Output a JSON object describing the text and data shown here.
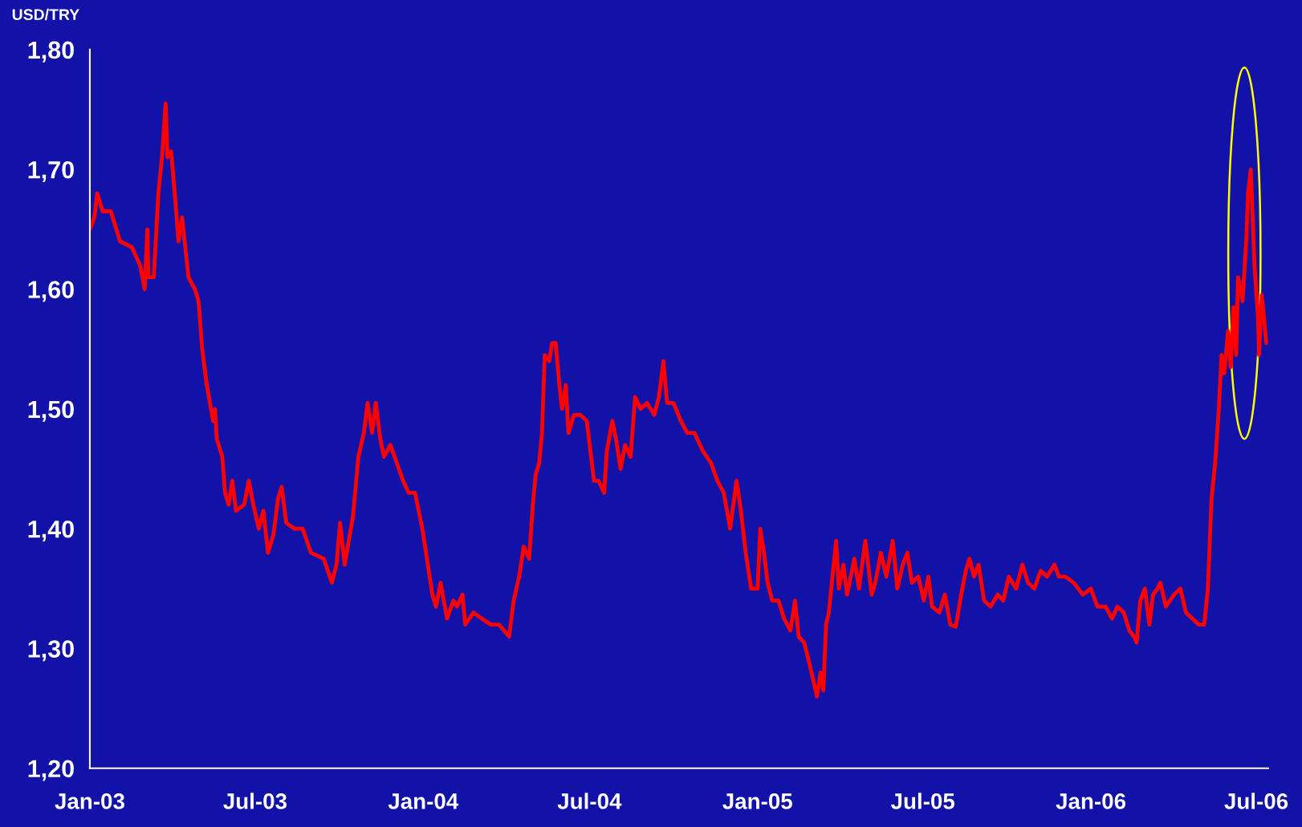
{
  "chart_data": {
    "type": "line",
    "ylabel": "USD/TRY",
    "xlim": [
      "2003-01-01",
      "2006-07-14"
    ],
    "ylim": [
      1.2,
      1.8
    ],
    "xticks": [
      {
        "value": "2003-01-01",
        "label": "Jan-03"
      },
      {
        "value": "2003-07-01",
        "label": "Jul-03"
      },
      {
        "value": "2004-01-01",
        "label": "Jan-04"
      },
      {
        "value": "2004-07-01",
        "label": "Jul-04"
      },
      {
        "value": "2005-01-01",
        "label": "Jan-05"
      },
      {
        "value": "2005-07-01",
        "label": "Jul-05"
      },
      {
        "value": "2006-01-01",
        "label": "Jan-06"
      },
      {
        "value": "2006-07-01",
        "label": "Jul-06"
      }
    ],
    "yticks": [
      {
        "value": 1.2,
        "label": "1,20"
      },
      {
        "value": 1.3,
        "label": "1,30"
      },
      {
        "value": 1.4,
        "label": "1,40"
      },
      {
        "value": 1.5,
        "label": "1,50"
      },
      {
        "value": 1.6,
        "label": "1,60"
      },
      {
        "value": 1.7,
        "label": "1,70"
      },
      {
        "value": 1.8,
        "label": "1,80"
      }
    ],
    "grid": false,
    "legend": false,
    "marker": "none",
    "line_style": "solid",
    "series": [
      {
        "color": "#ff0000",
        "x": [
          "2003-01-01",
          "2003-01-06",
          "2003-01-09",
          "2003-01-15",
          "2003-01-24",
          "2003-02-03",
          "2003-02-16",
          "2003-02-25",
          "2003-03-02",
          "2003-03-05",
          "2003-03-06",
          "2003-03-12",
          "2003-03-17",
          "2003-03-21",
          "2003-03-25",
          "2003-03-27",
          "2003-03-31",
          "2003-04-05",
          "2003-04-08",
          "2003-04-12",
          "2003-04-19",
          "2003-04-26",
          "2003-04-30",
          "2003-05-04",
          "2003-05-09",
          "2003-05-16",
          "2003-05-18",
          "2003-05-20",
          "2003-05-26",
          "2003-05-29",
          "2003-06-02",
          "2003-06-06",
          "2003-06-10",
          "2003-06-19",
          "2003-06-24",
          "2003-06-29",
          "2003-07-05",
          "2003-07-10",
          "2003-07-15",
          "2003-07-21",
          "2003-07-26",
          "2003-07-30",
          "2003-08-04",
          "2003-08-13",
          "2003-08-22",
          "2003-08-31",
          "2003-09-14",
          "2003-09-23",
          "2003-09-28",
          "2003-10-02",
          "2003-10-07",
          "2003-10-16",
          "2003-10-22",
          "2003-10-28",
          "2003-11-01",
          "2003-11-06",
          "2003-11-10",
          "2003-11-15",
          "2003-11-19",
          "2003-11-26",
          "2003-12-03",
          "2003-12-10",
          "2003-12-16",
          "2003-12-23",
          "2003-12-31",
          "2004-01-06",
          "2004-01-11",
          "2004-01-15",
          "2004-01-20",
          "2004-01-27",
          "2004-02-03",
          "2004-02-07",
          "2004-02-13",
          "2004-02-16",
          "2004-02-25",
          "2004-03-05",
          "2004-03-15",
          "2004-03-24",
          "2004-04-04",
          "2004-04-09",
          "2004-04-15",
          "2004-04-20",
          "2004-04-26",
          "2004-04-30",
          "2004-05-03",
          "2004-05-07",
          "2004-05-10",
          "2004-05-13",
          "2004-05-18",
          "2004-05-21",
          "2004-05-25",
          "2004-05-29",
          "2004-06-01",
          "2004-06-05",
          "2004-06-08",
          "2004-06-14",
          "2004-06-21",
          "2004-06-28",
          "2004-07-02",
          "2004-07-06",
          "2004-07-11",
          "2004-07-17",
          "2004-07-20",
          "2004-07-26",
          "2004-07-30",
          "2004-08-04",
          "2004-08-09",
          "2004-08-15",
          "2004-08-20",
          "2004-08-26",
          "2004-09-02",
          "2004-09-10",
          "2004-09-15",
          "2004-09-20",
          "2004-09-24",
          "2004-10-01",
          "2004-10-09",
          "2004-10-16",
          "2004-10-24",
          "2004-11-02",
          "2004-11-11",
          "2004-11-18",
          "2004-11-25",
          "2004-12-02",
          "2004-12-09",
          "2004-12-13",
          "2004-12-19",
          "2004-12-25",
          "2005-01-01",
          "2005-01-04",
          "2005-01-08",
          "2005-01-12",
          "2005-01-17",
          "2005-01-24",
          "2005-01-30",
          "2005-02-06",
          "2005-02-11",
          "2005-02-15",
          "2005-02-21",
          "2005-02-26",
          "2005-03-04",
          "2005-03-07",
          "2005-03-11",
          "2005-03-14",
          "2005-03-17",
          "2005-03-20",
          "2005-03-24",
          "2005-03-28",
          "2005-03-31",
          "2005-04-05",
          "2005-04-09",
          "2005-04-17",
          "2005-04-22",
          "2005-04-29",
          "2005-05-06",
          "2005-05-10",
          "2005-05-16",
          "2005-05-22",
          "2005-05-29",
          "2005-06-03",
          "2005-06-09",
          "2005-06-14",
          "2005-06-19",
          "2005-06-26",
          "2005-07-02",
          "2005-07-07",
          "2005-07-11",
          "2005-07-19",
          "2005-07-25",
          "2005-07-31",
          "2005-08-06",
          "2005-08-12",
          "2005-08-17",
          "2005-08-21",
          "2005-08-26",
          "2005-08-31",
          "2005-09-06",
          "2005-09-13",
          "2005-09-21",
          "2005-09-27",
          "2005-10-03",
          "2005-10-11",
          "2005-10-18",
          "2005-10-24",
          "2005-10-31",
          "2005-11-07",
          "2005-11-14",
          "2005-11-22",
          "2005-11-27",
          "2005-12-04",
          "2005-12-13",
          "2005-12-23",
          "2006-01-01",
          "2006-01-08",
          "2006-01-17",
          "2006-01-24",
          "2006-01-30",
          "2006-02-06",
          "2006-02-12",
          "2006-02-17",
          "2006-02-20",
          "2006-02-24",
          "2006-03-01",
          "2006-03-06",
          "2006-03-10",
          "2006-03-15",
          "2006-03-18",
          "2006-03-24",
          "2006-04-02",
          "2006-04-09",
          "2006-04-15",
          "2006-04-22",
          "2006-04-29",
          "2006-05-05",
          "2006-05-09",
          "2006-05-13",
          "2006-05-17",
          "2006-05-21",
          "2006-05-24",
          "2006-05-27",
          "2006-05-31",
          "2006-06-03",
          "2006-06-06",
          "2006-06-09",
          "2006-06-11",
          "2006-06-16",
          "2006-06-20",
          "2006-06-22",
          "2006-06-25",
          "2006-06-29",
          "2006-07-03",
          "2006-07-04",
          "2006-07-07",
          "2006-07-12"
        ],
        "values": [
          1.65,
          1.66,
          1.68,
          1.665,
          1.665,
          1.64,
          1.635,
          1.62,
          1.6,
          1.65,
          1.61,
          1.61,
          1.68,
          1.71,
          1.755,
          1.71,
          1.715,
          1.67,
          1.64,
          1.66,
          1.61,
          1.6,
          1.59,
          1.55,
          1.52,
          1.49,
          1.5,
          1.475,
          1.46,
          1.43,
          1.42,
          1.44,
          1.415,
          1.42,
          1.44,
          1.42,
          1.4,
          1.415,
          1.38,
          1.395,
          1.425,
          1.435,
          1.405,
          1.4,
          1.4,
          1.38,
          1.375,
          1.355,
          1.37,
          1.405,
          1.37,
          1.41,
          1.46,
          1.48,
          1.505,
          1.48,
          1.505,
          1.475,
          1.46,
          1.47,
          1.455,
          1.44,
          1.43,
          1.43,
          1.4,
          1.37,
          1.345,
          1.335,
          1.355,
          1.325,
          1.34,
          1.335,
          1.345,
          1.32,
          1.33,
          1.325,
          1.32,
          1.32,
          1.31,
          1.34,
          1.36,
          1.385,
          1.375,
          1.42,
          1.445,
          1.455,
          1.48,
          1.545,
          1.54,
          1.555,
          1.555,
          1.52,
          1.5,
          1.52,
          1.48,
          1.495,
          1.495,
          1.49,
          1.465,
          1.44,
          1.44,
          1.43,
          1.465,
          1.49,
          1.475,
          1.45,
          1.47,
          1.46,
          1.51,
          1.5,
          1.505,
          1.495,
          1.51,
          1.54,
          1.505,
          1.505,
          1.49,
          1.48,
          1.48,
          1.465,
          1.455,
          1.44,
          1.43,
          1.4,
          1.44,
          1.42,
          1.38,
          1.35,
          1.35,
          1.4,
          1.38,
          1.355,
          1.34,
          1.34,
          1.325,
          1.315,
          1.34,
          1.31,
          1.305,
          1.29,
          1.27,
          1.26,
          1.28,
          1.265,
          1.32,
          1.33,
          1.36,
          1.39,
          1.35,
          1.37,
          1.345,
          1.375,
          1.35,
          1.39,
          1.345,
          1.355,
          1.38,
          1.36,
          1.39,
          1.35,
          1.37,
          1.38,
          1.355,
          1.36,
          1.34,
          1.36,
          1.335,
          1.33,
          1.345,
          1.32,
          1.318,
          1.345,
          1.365,
          1.375,
          1.36,
          1.37,
          1.34,
          1.335,
          1.345,
          1.34,
          1.36,
          1.35,
          1.37,
          1.355,
          1.35,
          1.365,
          1.36,
          1.37,
          1.36,
          1.36,
          1.355,
          1.345,
          1.35,
          1.335,
          1.335,
          1.325,
          1.335,
          1.33,
          1.315,
          1.31,
          1.305,
          1.34,
          1.35,
          1.32,
          1.345,
          1.35,
          1.355,
          1.335,
          1.345,
          1.35,
          1.33,
          1.325,
          1.32,
          1.32,
          1.35,
          1.425,
          1.455,
          1.5,
          1.545,
          1.53,
          1.565,
          1.535,
          1.585,
          1.545,
          1.61,
          1.59,
          1.64,
          1.68,
          1.7,
          1.62,
          1.575,
          1.545,
          1.595,
          1.555
        ]
      }
    ]
  }
}
